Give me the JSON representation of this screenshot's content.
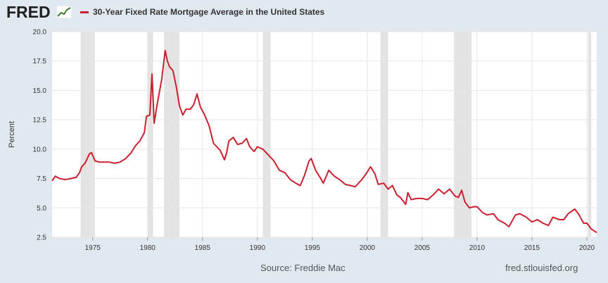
{
  "header": {
    "logo_text": "FRED",
    "logo_icon": "line-chart-icon"
  },
  "footer": {
    "source": "Source: Freddie Mac",
    "url": "fred.stlouisfed.org"
  },
  "colors": {
    "series": "#cc1f2f",
    "recession": "#e3e3e3",
    "grid": "#e6e6e6",
    "background": "#e1e9f0",
    "plot": "#ffffff"
  },
  "chart_data": {
    "type": "line",
    "title": "",
    "xlabel": "",
    "ylabel": "Percent",
    "xlim": [
      1971.3,
      2020.9
    ],
    "ylim": [
      2.5,
      20.0
    ],
    "x_ticks": [
      1975,
      1980,
      1985,
      1990,
      1995,
      2000,
      2005,
      2010,
      2015,
      2020
    ],
    "x_tick_labels": [
      "1975",
      "1980",
      "1985",
      "1990",
      "1995",
      "2000",
      "2005",
      "2010",
      "2015",
      "2020"
    ],
    "y_ticks": [
      2.5,
      5.0,
      7.5,
      10.0,
      12.5,
      15.0,
      17.5,
      20.0
    ],
    "y_tick_labels": [
      "2.5",
      "5.0",
      "7.5",
      "10.0",
      "12.5",
      "15.0",
      "17.5",
      "20.0"
    ],
    "grid": true,
    "legend_position": "top-left",
    "recessions": [
      [
        1973.9,
        1975.2
      ],
      [
        1980.0,
        1980.5
      ],
      [
        1981.5,
        1982.9
      ],
      [
        1990.5,
        1991.2
      ],
      [
        2001.2,
        2001.9
      ],
      [
        2007.9,
        2009.5
      ],
      [
        2020.1,
        2020.4
      ]
    ],
    "series": [
      {
        "name": "30-Year Fixed Rate Mortgage Average in the United States",
        "x": [
          1971.3,
          1971.6,
          1972.0,
          1972.5,
          1973.0,
          1973.5,
          1973.8,
          1974.0,
          1974.3,
          1974.7,
          1974.9,
          1975.2,
          1975.6,
          1976.0,
          1976.5,
          1977.0,
          1977.5,
          1978.0,
          1978.5,
          1978.9,
          1979.3,
          1979.7,
          1979.9,
          1980.2,
          1980.4,
          1980.6,
          1980.8,
          1981.0,
          1981.3,
          1981.6,
          1981.8,
          1982.0,
          1982.3,
          1982.6,
          1982.9,
          1983.2,
          1983.5,
          1983.9,
          1984.2,
          1984.5,
          1984.8,
          1985.2,
          1985.6,
          1986.0,
          1986.3,
          1986.6,
          1987.0,
          1987.2,
          1987.4,
          1987.8,
          1988.2,
          1988.6,
          1989.0,
          1989.3,
          1989.7,
          1990.0,
          1990.5,
          1991.0,
          1991.5,
          1992.0,
          1992.5,
          1993.0,
          1993.5,
          1993.9,
          1994.3,
          1994.7,
          1994.9,
          1995.3,
          1995.7,
          1996.0,
          1996.5,
          1997.0,
          1997.5,
          1998.0,
          1998.5,
          1998.9,
          1999.5,
          1999.9,
          2000.3,
          2000.7,
          2001.0,
          2001.5,
          2001.9,
          2002.3,
          2002.7,
          2003.0,
          2003.5,
          2003.7,
          2004.0,
          2004.5,
          2005.0,
          2005.5,
          2006.0,
          2006.5,
          2007.0,
          2007.5,
          2008.0,
          2008.3,
          2008.6,
          2008.9,
          2009.3,
          2009.7,
          2010.0,
          2010.5,
          2010.9,
          2011.5,
          2011.9,
          2012.5,
          2012.9,
          2013.5,
          2013.9,
          2014.5,
          2015.0,
          2015.5,
          2016.0,
          2016.5,
          2016.9,
          2017.5,
          2017.9,
          2018.3,
          2018.9,
          2019.3,
          2019.7,
          2020.0,
          2020.4,
          2020.9
        ],
        "y": [
          7.3,
          7.7,
          7.5,
          7.4,
          7.5,
          7.6,
          8.0,
          8.5,
          8.8,
          9.6,
          9.7,
          9.0,
          8.9,
          8.9,
          8.9,
          8.8,
          8.9,
          9.2,
          9.7,
          10.3,
          10.7,
          11.4,
          12.8,
          12.9,
          16.4,
          12.2,
          13.4,
          14.5,
          16.0,
          18.4,
          17.5,
          17.0,
          16.7,
          15.4,
          13.7,
          12.9,
          13.4,
          13.4,
          13.8,
          14.7,
          13.6,
          12.9,
          12.0,
          10.5,
          10.2,
          9.9,
          9.1,
          9.7,
          10.7,
          11.0,
          10.4,
          10.5,
          10.9,
          10.2,
          9.8,
          10.2,
          10.0,
          9.5,
          9.0,
          8.2,
          8.0,
          7.4,
          7.1,
          6.9,
          7.8,
          9.0,
          9.2,
          8.2,
          7.6,
          7.1,
          8.2,
          7.7,
          7.4,
          7.0,
          6.9,
          6.8,
          7.4,
          7.9,
          8.5,
          7.9,
          7.0,
          7.1,
          6.6,
          6.9,
          6.1,
          5.9,
          5.3,
          6.3,
          5.7,
          5.8,
          5.8,
          5.7,
          6.1,
          6.6,
          6.2,
          6.6,
          6.0,
          5.9,
          6.5,
          5.5,
          5.0,
          5.1,
          5.1,
          4.6,
          4.4,
          4.5,
          4.0,
          3.7,
          3.4,
          4.4,
          4.5,
          4.2,
          3.8,
          4.0,
          3.7,
          3.5,
          4.2,
          4.0,
          4.0,
          4.5,
          4.9,
          4.4,
          3.7,
          3.7,
          3.2,
          2.9
        ]
      }
    ]
  }
}
